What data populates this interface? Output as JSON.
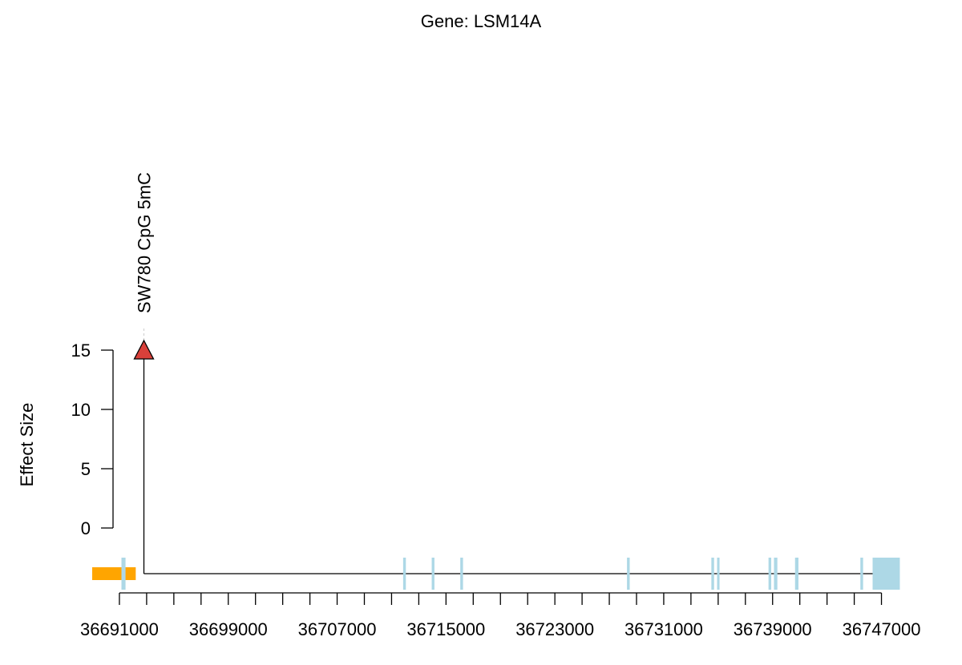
{
  "chart_data": {
    "type": "scatter",
    "title": "Gene: LSM14A",
    "xlabel": "",
    "ylabel": "Effect Size",
    "xlim": [
      36689000,
      36748500
    ],
    "ylim": [
      0,
      15
    ],
    "y_ticks": [
      0,
      5,
      10,
      15
    ],
    "x_minor_step": 2000,
    "x_tick_labels": [
      "36691000",
      "36699000",
      "36707000",
      "36715000",
      "36723000",
      "36731000",
      "36739000",
      "36747000"
    ],
    "points": [
      {
        "x": 36692800,
        "y": 15,
        "label": "SW780 CpG 5mC",
        "color": "#d9403a",
        "shape": "triangle"
      }
    ],
    "gene_track": {
      "line": [
        36692800,
        36747500
      ],
      "upstream_region": {
        "start": 36689000,
        "end": 36692200,
        "color": "#ffa500"
      },
      "exon_color": "#add8e6",
      "exons": [
        [
          36691150,
          36691450
        ],
        [
          36711850,
          36712050
        ],
        [
          36713950,
          36714150
        ],
        [
          36716050,
          36716250
        ],
        [
          36728300,
          36728500
        ],
        [
          36734500,
          36734700
        ],
        [
          36734920,
          36735100
        ],
        [
          36738700,
          36738900
        ],
        [
          36739100,
          36739350
        ],
        [
          36740650,
          36740900
        ],
        [
          36745450,
          36745650
        ],
        [
          36746350,
          36748350
        ]
      ]
    }
  }
}
